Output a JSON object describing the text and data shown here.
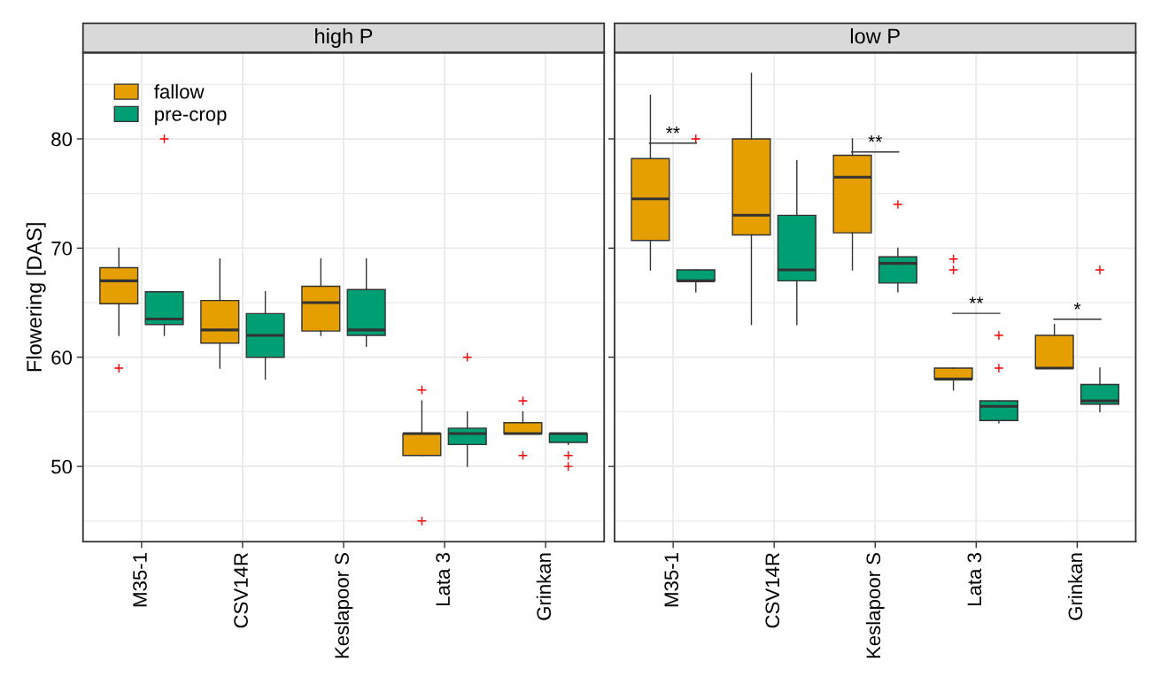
{
  "chart_data": [
    {
      "type": "box",
      "title": "high P",
      "ylabel": "Flowering [DAS]",
      "categories": [
        "M35-1",
        "CSV14R",
        "Keslapoor S",
        "Lata 3",
        "Grinkan"
      ],
      "ylim": [
        43.1,
        87.9
      ],
      "yticks": [
        50,
        60,
        70,
        80
      ],
      "grid": true,
      "legend": "top left",
      "series": [
        {
          "name": "fallow",
          "color": "#e69f00",
          "boxes": [
            {
              "low": 62,
              "q1": 64.9,
              "median": 67,
              "q3": 68.2,
              "high": 70,
              "outliers": [
                59
              ]
            },
            {
              "low": 59,
              "q1": 61.3,
              "median": 62.5,
              "q3": 65.2,
              "high": 69
            },
            {
              "low": 62,
              "q1": 62.4,
              "median": 65,
              "q3": 66.5,
              "high": 69
            },
            {
              "low": 51,
              "q1": 51,
              "median": 53,
              "q3": 53,
              "high": 56,
              "outliers": [
                57,
                45
              ]
            },
            {
              "low": 53,
              "q1": 53,
              "median": 53,
              "q3": 54,
              "high": 55,
              "outliers": [
                56,
                51
              ]
            }
          ]
        },
        {
          "name": "pre-crop",
          "color": "#009e73",
          "boxes": [
            {
              "low": 62,
              "q1": 63,
              "median": 63.5,
              "q3": 66,
              "high": 66,
              "outliers": [
                80
              ]
            },
            {
              "low": 58,
              "q1": 60,
              "median": 62,
              "q3": 64,
              "high": 66
            },
            {
              "low": 61,
              "q1": 62,
              "median": 62.5,
              "q3": 66.2,
              "high": 69
            },
            {
              "low": 50,
              "q1": 52,
              "median": 53,
              "q3": 53.5,
              "high": 55,
              "outliers": [
                60
              ]
            },
            {
              "low": 52,
              "q1": 52.2,
              "median": 53,
              "q3": 53,
              "high": 53,
              "outliers": [
                51,
                50
              ]
            }
          ]
        }
      ]
    },
    {
      "type": "box",
      "title": "low P",
      "categories": [
        "M35-1",
        "CSV14R",
        "Keslapoor S",
        "Lata 3",
        "Grinkan"
      ],
      "ylim": [
        43.1,
        87.9
      ],
      "yticks": [
        50,
        60,
        70,
        80
      ],
      "grid": true,
      "tick_labels": "x",
      "annotations": [
        "**",
        "**",
        "**",
        "*"
      ],
      "series": [
        {
          "color": "#e69f00",
          "boxes": [
            {
              "low": 68,
              "q1": 70.7,
              "median": 74.5,
              "q3": 78.2,
              "high": 84
            },
            {
              "low": 63,
              "q1": 71.2,
              "median": 73,
              "q3": 80,
              "high": 86
            },
            {
              "low": 68,
              "q1": 71.4,
              "median": 76.5,
              "q3": 78.5,
              "high": 80
            },
            {
              "low": 57,
              "q1": 58,
              "median": 58,
              "q3": 59,
              "high": 59,
              "outliers": [
                69,
                68
              ]
            },
            {
              "low": 59,
              "q1": 59,
              "median": 59,
              "q3": 62,
              "high": 63
            }
          ]
        },
        {
          "color": "#009e73",
          "boxes": [
            {
              "low": 66,
              "q1": 67,
              "median": 67,
              "q3": 68,
              "high": 68,
              "outliers": [
                80
              ]
            },
            {
              "low": 63,
              "q1": 67,
              "median": 68,
              "q3": 73,
              "high": 78
            },
            {
              "low": 66,
              "q1": 66.8,
              "median": 68.6,
              "q3": 69.2,
              "high": 70,
              "outliers": [
                74
              ]
            },
            {
              "low": 54,
              "q1": 54.2,
              "median": 55.5,
              "q3": 56,
              "high": 56,
              "outliers": [
                62,
                59
              ]
            },
            {
              "low": 55,
              "q1": 55.7,
              "median": 56,
              "q3": 57.5,
              "high": 59,
              "outliers": [
                68
              ]
            }
          ]
        }
      ]
    }
  ]
}
